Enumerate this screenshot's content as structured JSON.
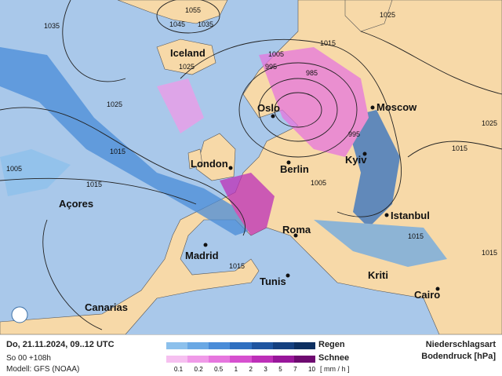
{
  "colors": {
    "sea": "#a9c8ea",
    "land": "#f7d9a8",
    "rain": [
      "#8cc0ec",
      "#6aa8e4",
      "#4a8cd8",
      "#2f6fc0",
      "#1f55a0",
      "#15407f",
      "#0d2f60"
    ],
    "snow": [
      "#f6c0f0",
      "#f09ae8",
      "#e676de",
      "#d650cf",
      "#bd2fb8",
      "#98169a",
      "#6e0a70"
    ]
  },
  "cities": [
    "Iceland",
    "Oslo",
    "Moscow",
    "London",
    "Berlin",
    "Kyiv",
    "Açores",
    "Istanbul",
    "Roma",
    "Madrid",
    "Tunis",
    "Kriti",
    "Canarias",
    "Cairo"
  ],
  "isobar_labels": [
    "1055",
    "1045",
    "1035",
    "1035",
    "1025",
    "1015",
    "1005",
    "995",
    "985",
    "1025",
    "1015",
    "1005",
    "1015",
    "1005",
    "995",
    "1025",
    "1015",
    "1015",
    "1015",
    "1025",
    "1015"
  ],
  "footer": {
    "date": "Do, 21.11.2024, 09..12 UTC",
    "run": "So 00 +108h",
    "model": "Modell: GFS (NOAA)",
    "rain_label": "Regen",
    "snow_label": "Schnee",
    "scale": [
      "0.1",
      "0.2",
      "0.5",
      "1",
      "2",
      "3",
      "5",
      "7",
      "10"
    ],
    "unit": "[ mm / h ]",
    "title1": "Niederschlagsart",
    "title2": "Bodendruck [hPa]"
  }
}
